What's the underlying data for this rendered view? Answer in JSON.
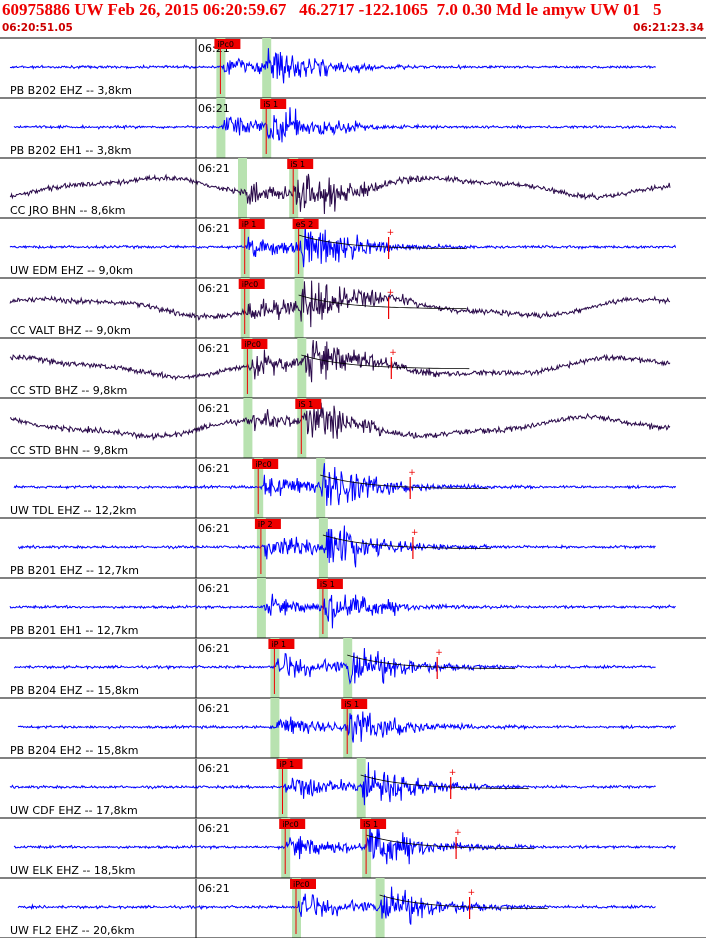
{
  "header": {
    "title": "60975886 UW Feb 26, 2015 06:20:59.67   46.2717 -122.1065  7.0 0.30 Md le amyw UW 01   5",
    "start_time": "06:20:51.05",
    "end_time": "06:21:23.34"
  },
  "colors": {
    "header_text": "#ee0000",
    "trace_blue": "#0000ff",
    "trace_dark": "#2a0a4a",
    "pick_fill": "#ee0000",
    "pick_window": "#b8e2b0",
    "separator": "#000000",
    "station_text": "#000000"
  },
  "chart_data": {
    "type": "line",
    "x_unit": "time (s, UTC 2015-02-26)",
    "x_range": [
      "06:20:51.05",
      "06:21:23.34"
    ],
    "minute_tick": "06:21",
    "traces": [
      {
        "label": "PB B202 EHZ -- 3,8km",
        "color": "blue",
        "picks": [
          "iPc0"
        ],
        "p_time_s": 9.2,
        "s_time_s": 10.6,
        "has_coda": false
      },
      {
        "label": "PB B202 EH1 -- 3,8km",
        "color": "blue",
        "picks": [
          "iS 1"
        ],
        "p_time_s": 9.2,
        "s_time_s": 10.6,
        "has_coda": false
      },
      {
        "label": "CC JRO BHN -- 8,6km",
        "color": "dark",
        "picks": [
          "iS 1"
        ],
        "p_time_s": 10.0,
        "s_time_s": 11.6,
        "has_coda": false
      },
      {
        "label": "UW EDM EHZ -- 9,0km",
        "color": "blue",
        "picks": [
          "iP 1",
          "eS 2"
        ],
        "p_time_s": 10.1,
        "s_time_s": 11.8,
        "has_coda": true
      },
      {
        "label": "CC VALT BHZ -- 9,0km",
        "color": "dark",
        "picks": [
          "iPc0"
        ],
        "p_time_s": 10.1,
        "s_time_s": 11.8,
        "has_coda": true
      },
      {
        "label": "CC STD BHZ -- 9,8km",
        "color": "dark",
        "picks": [
          "iPc0"
        ],
        "p_time_s": 10.2,
        "s_time_s": 11.9,
        "has_coda": true
      },
      {
        "label": "CC STD BHN -- 9,8km",
        "color": "dark",
        "picks": [
          "iS 1"
        ],
        "p_time_s": 10.2,
        "s_time_s": 11.9,
        "has_coda": false
      },
      {
        "label": "UW TDL EHZ -- 12,2km",
        "color": "blue",
        "picks": [
          "iPc0"
        ],
        "p_time_s": 10.6,
        "s_time_s": 12.6,
        "has_coda": true
      },
      {
        "label": "PB B201 EHZ -- 12,7km",
        "color": "blue",
        "picks": [
          "iP 2"
        ],
        "p_time_s": 10.7,
        "s_time_s": 12.7,
        "has_coda": true
      },
      {
        "label": "PB B201 EH1 -- 12,7km",
        "color": "blue",
        "picks": [
          "iS 1"
        ],
        "p_time_s": 10.7,
        "s_time_s": 12.7,
        "has_coda": false
      },
      {
        "label": "PB B204 EHZ -- 15,8km",
        "color": "blue",
        "picks": [
          "iP 1"
        ],
        "p_time_s": 11.2,
        "s_time_s": 13.6,
        "has_coda": true
      },
      {
        "label": "PB B204 EH2 -- 15,8km",
        "color": "blue",
        "picks": [
          "iS 1"
        ],
        "p_time_s": 11.2,
        "s_time_s": 13.6,
        "has_coda": false
      },
      {
        "label": "UW CDF EHZ -- 17,8km",
        "color": "blue",
        "picks": [
          "iP 1"
        ],
        "p_time_s": 11.5,
        "s_time_s": 14.1,
        "has_coda": true
      },
      {
        "label": "UW ELK EHZ -- 18,5km",
        "color": "blue",
        "picks": [
          "iPc0",
          "iS 1"
        ],
        "p_time_s": 11.6,
        "s_time_s": 14.3,
        "has_coda": true
      },
      {
        "label": "UW FL2 EHZ -- 20,6km",
        "color": "blue",
        "picks": [
          "iPc0"
        ],
        "p_time_s": 12.0,
        "s_time_s": 14.8,
        "has_coda": true
      }
    ]
  }
}
